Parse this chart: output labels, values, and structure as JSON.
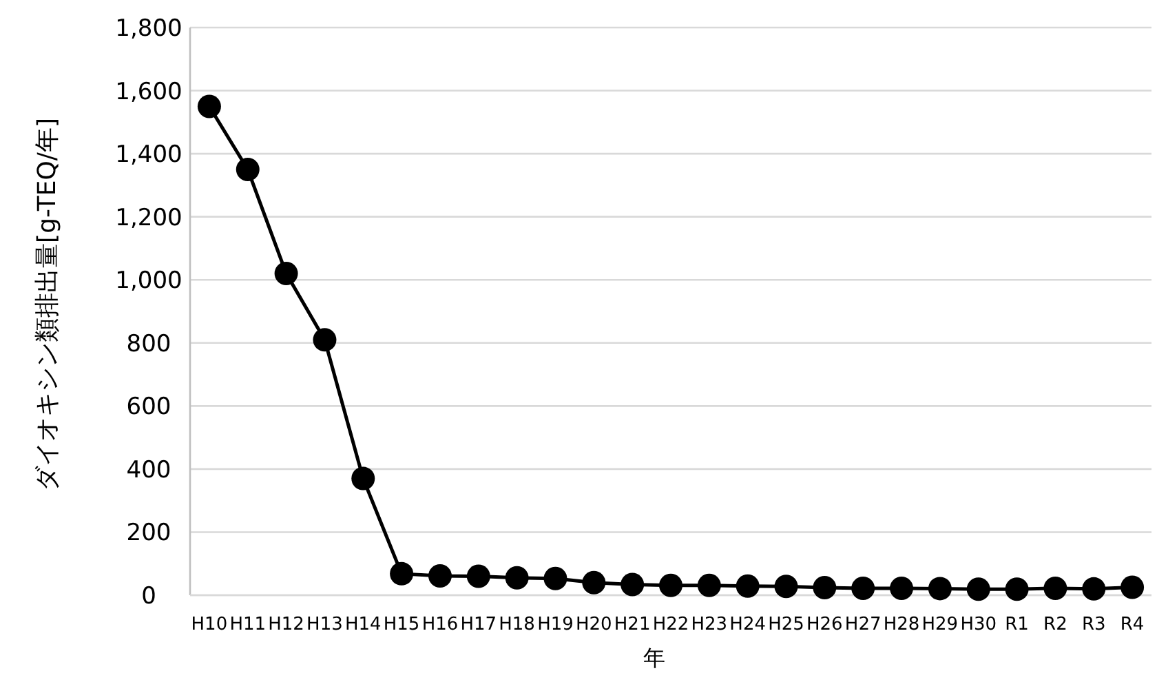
{
  "chart_data": {
    "type": "line",
    "xlabel": "年",
    "ylabel": "ダイオキシン類排出量[g-TEQ/年]",
    "categories": [
      "H10",
      "H11",
      "H12",
      "H13",
      "H14",
      "H15",
      "H16",
      "H17",
      "H18",
      "H19",
      "H20",
      "H21",
      "H22",
      "H23",
      "H24",
      "H25",
      "H26",
      "H27",
      "H28",
      "H29",
      "H30",
      "R1",
      "R2",
      "R3",
      "R4"
    ],
    "series": [
      {
        "color": "#000000",
        "values": [
          1550,
          1350,
          1020,
          810,
          370,
          68,
          61,
          60,
          55,
          53,
          40,
          34,
          31,
          31,
          29,
          28,
          24,
          22,
          22,
          21,
          19,
          19,
          22,
          20,
          25
        ]
      }
    ],
    "ylim": [
      0,
      1800
    ],
    "yticks": [
      0,
      200,
      400,
      600,
      800,
      {
        "value": 1000,
        "label": "1,000"
      },
      {
        "value": 1200,
        "label": "1,200"
      },
      {
        "value": 1400,
        "label": "1,400"
      },
      {
        "value": 1600,
        "label": "1,600"
      },
      {
        "value": 1800,
        "label": "1,800"
      }
    ],
    "grid": "y",
    "marker": "circle",
    "line_style": "solid"
  }
}
